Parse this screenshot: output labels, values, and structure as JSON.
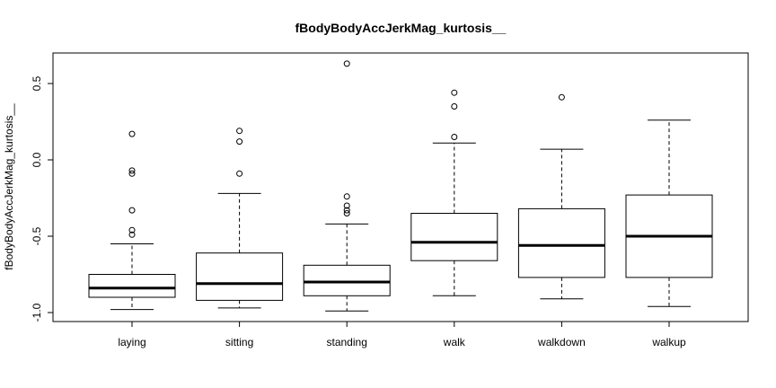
{
  "chart_data": {
    "type": "boxplot",
    "title": "fBodyBodyAccJerkMag_kurtosis__",
    "xlabel": "",
    "ylabel": "fBodyBodyAccJerkMag_kurtosis__",
    "ylim": [
      -1.05,
      0.7
    ],
    "yticks": [
      -1.0,
      -0.5,
      0.0,
      0.5
    ],
    "ytick_labels": [
      "-1.0",
      "-0.5",
      "0.0",
      "0.5"
    ],
    "grid": false,
    "categories": [
      "laying",
      "sitting",
      "standing",
      "walk",
      "walkdown",
      "walkup"
    ],
    "boxes": [
      {
        "name": "laying",
        "whisker_low": -0.98,
        "q1": -0.9,
        "median": -0.84,
        "q3": -0.75,
        "whisker_high": -0.55,
        "outliers": [
          0.17,
          -0.07,
          -0.09,
          -0.33,
          -0.46,
          -0.49
        ]
      },
      {
        "name": "sitting",
        "whisker_low": -0.97,
        "q1": -0.92,
        "median": -0.81,
        "q3": -0.61,
        "whisker_high": -0.22,
        "outliers": [
          0.19,
          0.12,
          -0.09
        ]
      },
      {
        "name": "standing",
        "whisker_low": -0.99,
        "q1": -0.89,
        "median": -0.8,
        "q3": -0.69,
        "whisker_high": -0.42,
        "outliers": [
          0.63,
          -0.24,
          -0.3,
          -0.33,
          -0.35
        ]
      },
      {
        "name": "walk",
        "whisker_low": -0.89,
        "q1": -0.66,
        "median": -0.54,
        "q3": -0.35,
        "whisker_high": 0.11,
        "outliers": [
          0.44,
          0.35,
          0.15
        ]
      },
      {
        "name": "walkdown",
        "whisker_low": -0.91,
        "q1": -0.77,
        "median": -0.56,
        "q3": -0.32,
        "whisker_high": 0.07,
        "outliers": [
          0.41
        ]
      },
      {
        "name": "walkup",
        "whisker_low": -0.96,
        "q1": -0.77,
        "median": -0.5,
        "q3": -0.23,
        "whisker_high": 0.26,
        "outliers": []
      }
    ]
  }
}
